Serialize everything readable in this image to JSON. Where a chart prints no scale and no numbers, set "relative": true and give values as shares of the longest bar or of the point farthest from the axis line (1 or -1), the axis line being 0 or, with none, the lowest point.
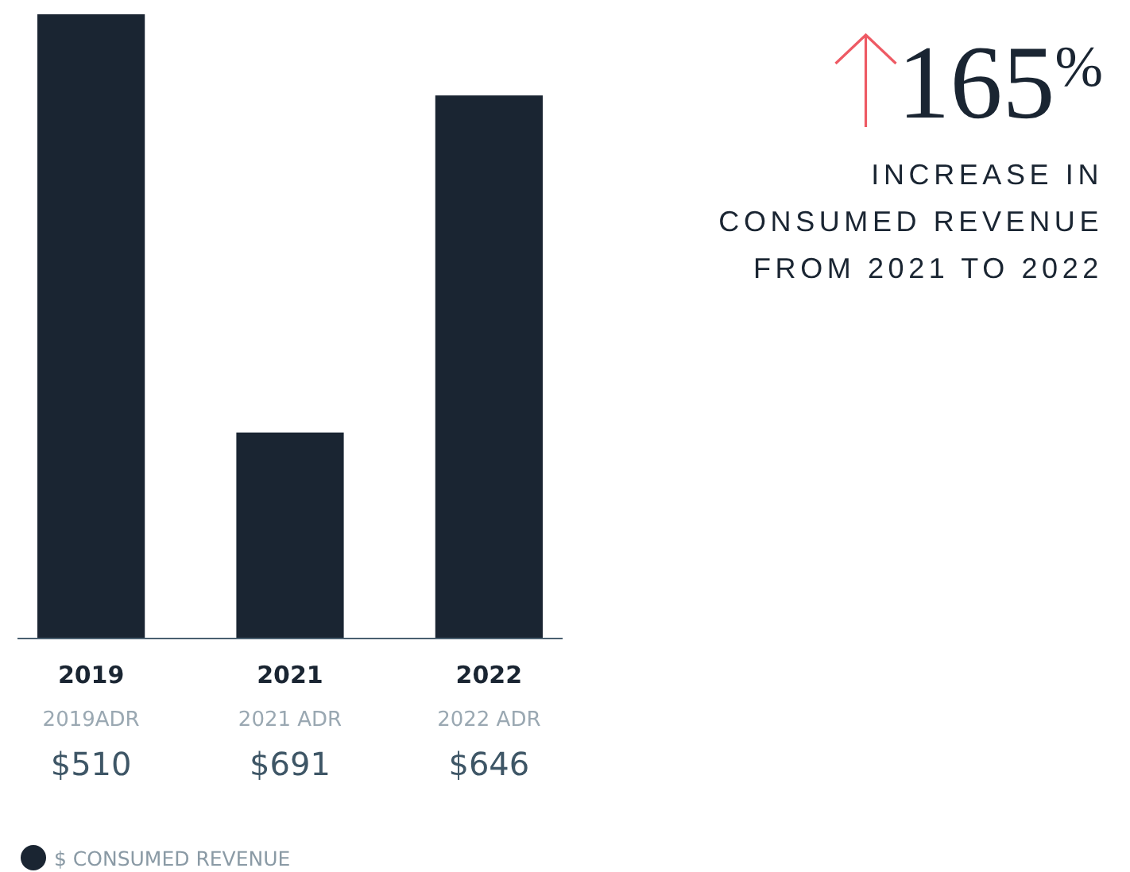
{
  "chart_data": {
    "type": "bar",
    "relative": true,
    "categories": [
      "2019",
      "2021",
      "2022"
    ],
    "series": [
      {
        "name": "$ CONSUMED REVENUE",
        "color": "#1a2532",
        "values": [
          1,
          0.33,
          0.87
        ]
      }
    ],
    "legend": "bottom left",
    "annotations": [
      "165$^{%}$",
      "INCREASE IN CONSUMED REVENUE FROM 2021 TO 2022",
      "2019ADR",
      "$510",
      "2021 ADR",
      "$691",
      "2022 ADR",
      "$646"
    ]
  }
}
